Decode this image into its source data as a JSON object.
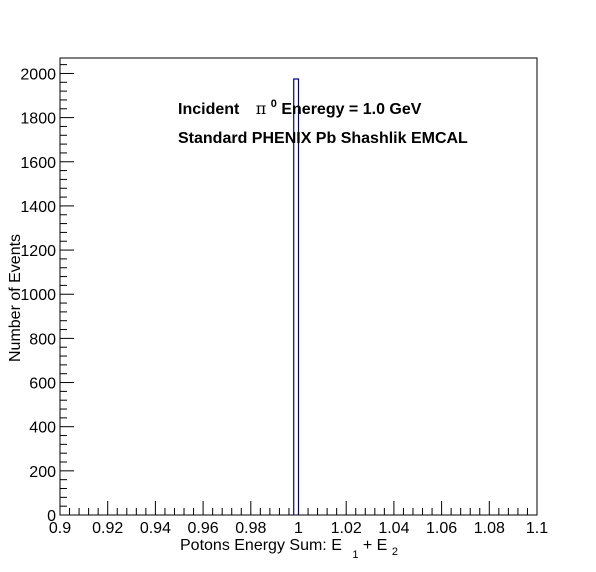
{
  "chart_data": {
    "type": "bar",
    "title": "",
    "xlabel": "Potons Energy Sum: E 1 + E2",
    "xlabel_parts": {
      "main": "Potons Energy Sum: E",
      "sub1": "1",
      "plus": " + E",
      "sub2": "2"
    },
    "ylabel": "Number of Events",
    "xlim": [
      0.9,
      1.1
    ],
    "ylim": [
      0,
      2070
    ],
    "x_ticks": [
      "0.9",
      "0.92",
      "0.94",
      "0.96",
      "0.98",
      "1",
      "1.02",
      "1.04",
      "1.06",
      "1.08",
      "1.1"
    ],
    "y_ticks": [
      "0",
      "200",
      "400",
      "600",
      "800",
      "1000",
      "1200",
      "1400",
      "1600",
      "1800",
      "2000"
    ],
    "series": [
      {
        "bins": [
          {
            "x_low": 0.998,
            "x_high": 1.0,
            "value": 1975
          }
        ]
      }
    ],
    "annotations": {
      "line1_prefix": "Incident",
      "line1_symbol": "π",
      "line1_sup": "0",
      "line1_suffix": " Eneregy = 1.0 GeV",
      "line2": "Standard PHENIX Pb Shashlik EMCAL"
    },
    "grid": false,
    "colors": {
      "histogram_line": "#000099",
      "frame": "#000000"
    }
  }
}
